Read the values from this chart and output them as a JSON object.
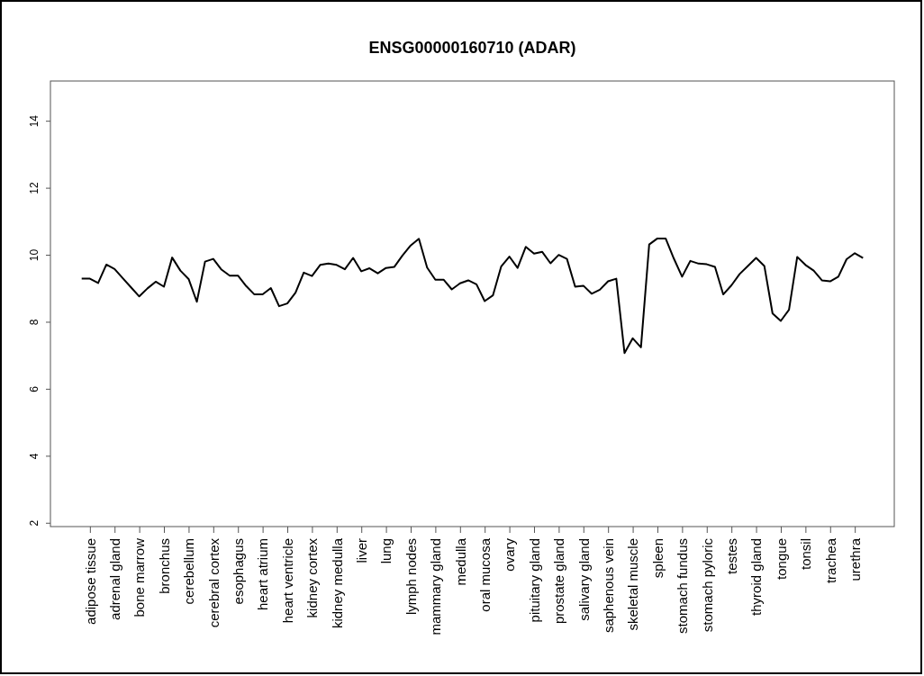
{
  "chart_data": {
    "type": "line",
    "title": "ENSG00000160710 (ADAR)",
    "categories": [
      null,
      "adipose tissue",
      null,
      null,
      "adrenal gland",
      null,
      null,
      "bone marrow",
      null,
      null,
      "bronchus",
      null,
      null,
      "cerebellum",
      null,
      null,
      "cerebral cortex",
      null,
      null,
      "esophagus",
      null,
      null,
      "heart atrium",
      null,
      null,
      "heart ventricle",
      null,
      null,
      "kidney cortex",
      null,
      null,
      "kidney medulla",
      null,
      null,
      "liver",
      null,
      null,
      "lung",
      null,
      null,
      "lymph nodes",
      null,
      null,
      "mammary gland",
      null,
      null,
      "medulla",
      null,
      null,
      "oral mucosa",
      null,
      null,
      "ovary",
      null,
      null,
      "pituitary gland",
      null,
      null,
      "prostate gland",
      null,
      null,
      "salivary gland",
      null,
      null,
      "saphenous vein",
      null,
      null,
      "skeletal muscle",
      null,
      null,
      "spleen",
      null,
      null,
      "stomach fundus",
      null,
      null,
      "stomach pyloric",
      null,
      null,
      "testes",
      null,
      null,
      "thyroid gland",
      null,
      null,
      "tongue",
      null,
      null,
      "tonsil",
      null,
      null,
      "trachea",
      null,
      null,
      "urethra",
      null
    ],
    "series": [
      {
        "color": "#000000",
        "values": [
          9.3,
          9.3,
          9.17,
          9.72,
          9.59,
          9.31,
          9.04,
          8.77,
          9.01,
          9.21,
          9.06,
          9.93,
          9.54,
          9.29,
          8.61,
          9.81,
          9.89,
          9.57,
          9.39,
          9.39,
          9.08,
          8.83,
          8.83,
          9.02,
          8.48,
          8.56,
          8.88,
          9.48,
          9.38,
          9.71,
          9.75,
          9.71,
          9.58,
          9.92,
          9.52,
          9.61,
          9.46,
          9.62,
          9.65,
          9.99,
          10.29,
          10.49,
          9.63,
          9.27,
          9.27,
          8.98,
          9.16,
          9.25,
          9.13,
          8.63,
          8.8,
          9.66,
          9.96,
          9.62,
          10.25,
          10.05,
          10.1,
          9.76,
          10.01,
          9.89,
          9.06,
          9.09,
          8.85,
          8.97,
          9.22,
          9.3,
          7.08,
          7.52,
          7.25,
          10.32,
          10.5,
          10.5,
          9.9,
          9.36,
          9.83,
          9.75,
          9.73,
          9.65,
          8.83,
          9.1,
          9.44,
          9.68,
          9.92,
          9.68,
          8.26,
          8.04,
          8.37,
          9.95,
          9.71,
          9.54,
          9.25,
          9.22,
          9.36,
          9.88,
          10.06,
          9.92
        ]
      }
    ],
    "ylim": [
      1.9,
      15.2
    ],
    "yticks": [
      2,
      4,
      6,
      8,
      10,
      12,
      14
    ],
    "marker": "none",
    "line_style": "solid"
  }
}
